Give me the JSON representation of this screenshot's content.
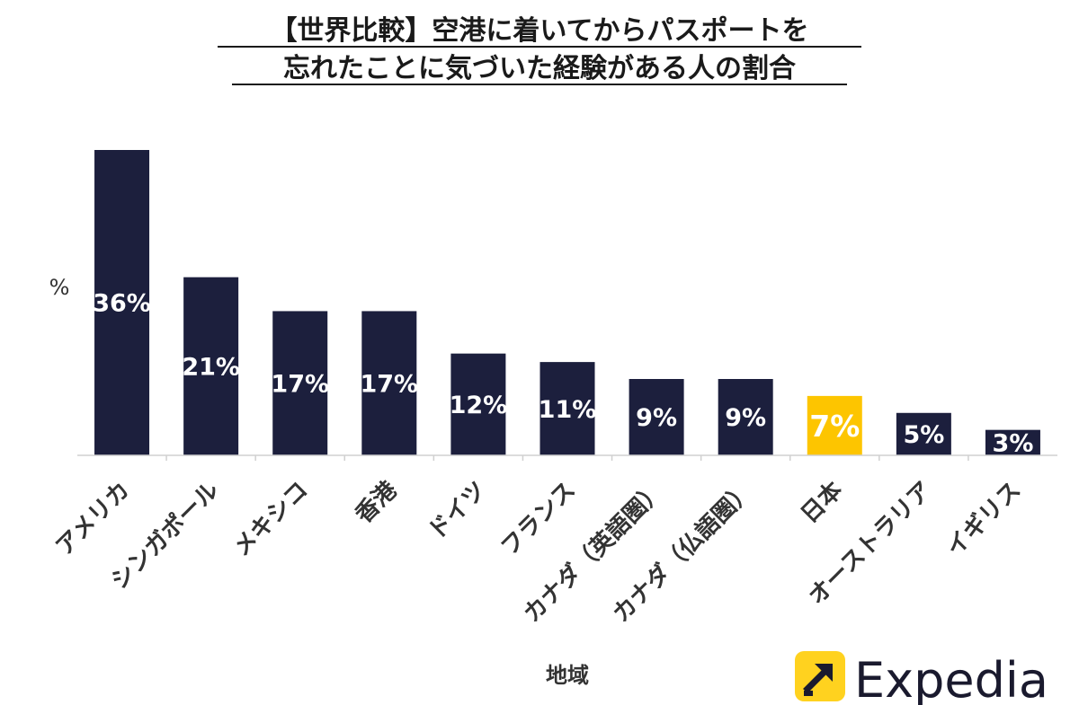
{
  "chart_data": {
    "type": "bar",
    "title_lines": [
      "【世界比較】空港に着いてからパスポートを",
      "忘れたことに気づいた経験がある人の割合"
    ],
    "xlabel": "地域",
    "ylabel": "%",
    "categories": [
      "アメリカ",
      "シンガポール",
      "メキシコ",
      "香港",
      "ドイツ",
      "フランス",
      "カナダ（英語圏）",
      "カナダ（仏語圏）",
      "日本",
      "オーストラリア",
      "イギリス"
    ],
    "values": [
      36,
      21,
      17,
      17,
      12,
      11,
      9,
      9,
      7,
      5,
      3
    ],
    "value_labels": [
      "36%",
      "21%",
      "17%",
      "17%",
      "12%",
      "11%",
      "9%",
      "9%",
      "7%",
      "5%",
      "3%"
    ],
    "ylim": [
      0,
      36
    ],
    "grid": false,
    "legend": "none",
    "colors": {
      "default": "#1c1f3d",
      "highlight": "#fdc500",
      "highlight_category": "日本"
    }
  },
  "brand": {
    "name": "Expedia",
    "logo_bg": "#ffd21f",
    "logo_fg": "#1a1a2e"
  }
}
